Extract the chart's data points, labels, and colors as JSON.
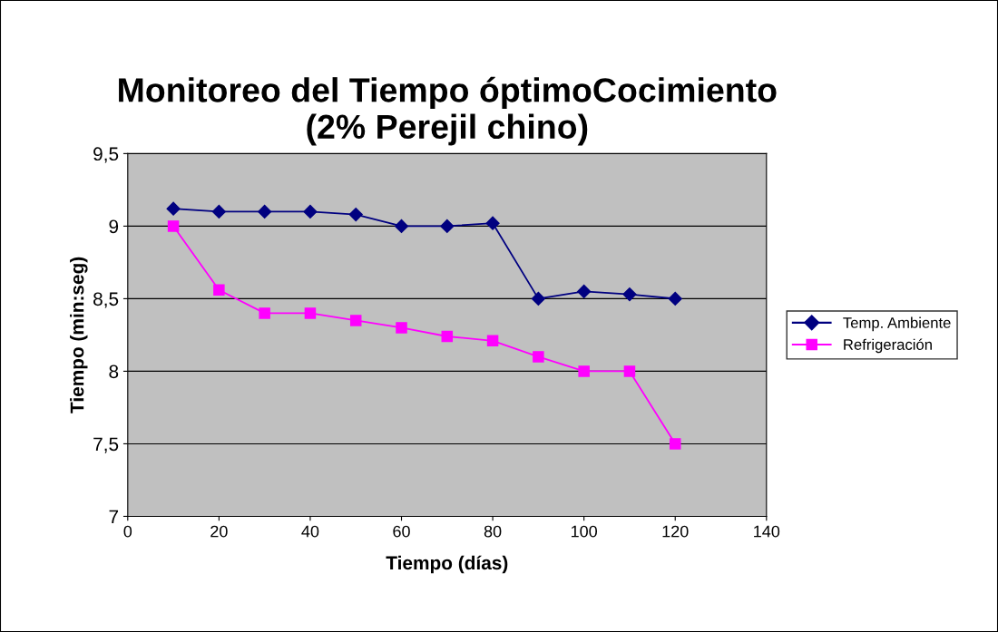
{
  "chart_data": {
    "type": "line",
    "title": "Monitoreo del Tiempo óptimoCocimiento\n(2% Perejil chino)",
    "xlabel": "Tiempo (días)",
    "ylabel": "Tiempo (min:seg)",
    "x": [
      10,
      20,
      30,
      40,
      50,
      60,
      70,
      80,
      90,
      100,
      110,
      120
    ],
    "series": [
      {
        "name": "Temp. Ambiente",
        "color": "#000080",
        "marker": "diamond",
        "values": [
          9.12,
          9.1,
          9.1,
          9.1,
          9.08,
          9.0,
          9.0,
          9.02,
          8.5,
          8.55,
          8.53,
          8.5
        ]
      },
      {
        "name": "Refrigeración",
        "color": "#ff00ff",
        "marker": "square",
        "values": [
          9.0,
          8.56,
          8.4,
          8.4,
          8.35,
          8.3,
          8.24,
          8.21,
          8.1,
          8.0,
          8.0,
          7.5
        ]
      }
    ],
    "xlim": [
      0,
      140
    ],
    "xticks": [
      0,
      20,
      40,
      60,
      80,
      100,
      120,
      140
    ],
    "ylim": [
      7,
      9.5
    ],
    "yticks": [
      {
        "value": 7,
        "label": "7"
      },
      {
        "value": 7.5,
        "label": "7,5"
      },
      {
        "value": 8,
        "label": "8"
      },
      {
        "value": 8.5,
        "label": "8,5"
      },
      {
        "value": 9,
        "label": "9"
      },
      {
        "value": 9.5,
        "label": "9,5"
      }
    ],
    "grid": "y",
    "legend": "right",
    "line_style": "solid"
  }
}
